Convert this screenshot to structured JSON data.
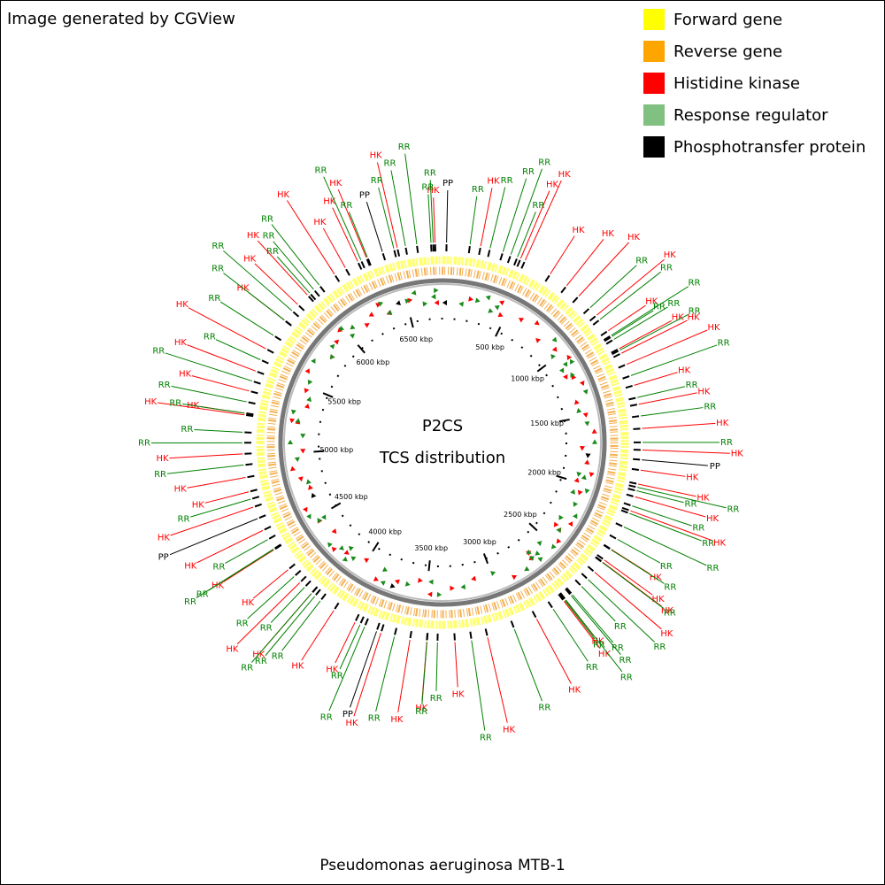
{
  "header": {
    "title": "Image generated by CGView"
  },
  "legend": [
    {
      "name": "Forward gene",
      "color": "#ffff00"
    },
    {
      "name": "Reverse gene",
      "color": "#ffa500"
    },
    {
      "name": "Histidine kinase",
      "color": "#ff0000"
    },
    {
      "name": "Response regulator",
      "color": "#80c080"
    },
    {
      "name": "Phosphotransfer protein",
      "color": "#000000"
    }
  ],
  "center": {
    "title": "P2CS",
    "subtitle": "TCS distribution"
  },
  "caption": "Pseudomonas aeruginosa MTB-1",
  "map": {
    "lim": [
      0,
      6770
    ],
    "ticks": [
      {
        "value": 500,
        "label": "500 kbp"
      },
      {
        "value": 1000,
        "label": "1000 kbp"
      },
      {
        "value": 1500,
        "label": "1500 kbp"
      },
      {
        "value": 2000,
        "label": "2000 kbp"
      },
      {
        "value": 2500,
        "label": "2500 kbp"
      },
      {
        "value": 3000,
        "label": "3000 kbp"
      },
      {
        "value": 3500,
        "label": "3500 kbp"
      },
      {
        "value": 4000,
        "label": "4000 kbp"
      },
      {
        "value": 4500,
        "label": "4500 kbp"
      },
      {
        "value": 5000,
        "label": "5000 kbp"
      },
      {
        "value": 5500,
        "label": "5500 kbp"
      },
      {
        "value": 6000,
        "label": "6000 kbp"
      },
      {
        "value": 6500,
        "label": "6500 kbp"
      }
    ],
    "features": [
      {
        "label": "HK",
        "color": "#ff0000",
        "positions": [
          6730,
          207,
          433,
          459,
          613,
          722,
          808,
          949,
          1053,
          1166,
          1194,
          1260,
          1380,
          1485,
          1617,
          1733,
          1842,
          1918,
          1989,
          2068,
          2301,
          2369,
          2384,
          2453,
          2670,
          2681,
          2857,
          3140,
          3318,
          3470,
          3561,
          3722,
          3873,
          4004,
          4155,
          4241,
          4335,
          4467,
          4587,
          4723,
          4809,
          4888,
          5016,
          5227,
          5236,
          5358,
          5471,
          5603,
          5787,
          5898,
          5971,
          6155,
          6223,
          6298,
          6349,
          6524
        ]
      },
      {
        "label": "RR",
        "color": "#008000",
        "positions": [
          149,
          259,
          331,
          376,
          414,
          895,
          978,
          1083,
          1090,
          1109,
          1175,
          1325,
          1448,
          1549,
          1692,
          1936,
          1955,
          2040,
          2083,
          2162,
          2237,
          2303,
          2386,
          2506,
          2557,
          2624,
          2632,
          2669,
          2675,
          2753,
          2989,
          3228,
          3412,
          3469,
          3647,
          3816,
          3843,
          4093,
          4132,
          4155,
          4205,
          4286,
          4470,
          4471,
          4531,
          4768,
          4956,
          5076,
          5133,
          5236,
          5298,
          5414,
          5537,
          5686,
          5787,
          5852,
          5987,
          6016,
          6054,
          6317,
          6355,
          6505,
          6569,
          6631,
          6708,
          6720
        ]
      },
      {
        "label": "PP",
        "color": "#000000",
        "positions": [
          22,
          1786,
          3747,
          4657,
          6441
        ]
      }
    ]
  }
}
